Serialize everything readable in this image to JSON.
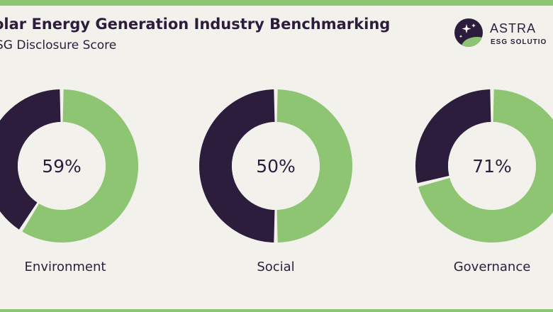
{
  "header": {
    "title": "olar Energy Generation Industry Benchmarking",
    "subtitle": "SG Disclosure Score"
  },
  "logo": {
    "name": "ASTRA",
    "tagline": "ESG SOLUTIO"
  },
  "colors": {
    "score": "#8dc572",
    "remainder": "#2c1d3d",
    "background": "#f2f1ec"
  },
  "chart_data": {
    "type": "pie",
    "variant": "donut",
    "charts": [
      {
        "category": "Environment",
        "value": 59,
        "label": "59%"
      },
      {
        "category": "Social",
        "value": 50,
        "label": "50%"
      },
      {
        "category": "Governance",
        "value": 71,
        "label": "71%"
      }
    ]
  }
}
